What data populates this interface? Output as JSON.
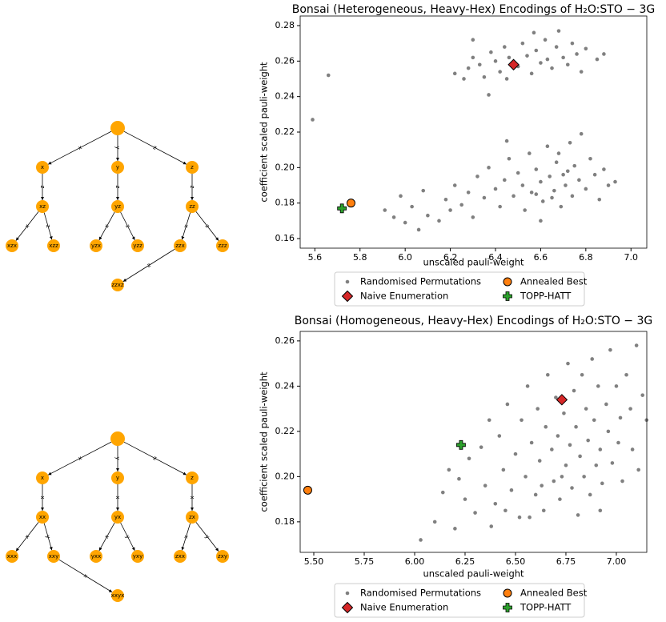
{
  "trees": [
    {
      "children": [
        {
          "edge": "x",
          "label": "x",
          "children": [
            {
              "edge": "z",
              "label": "xz",
              "children": [
                {
                  "edge": "x",
                  "label": "xzx"
                },
                {
                  "edge": "z",
                  "label": "xzz"
                }
              ]
            }
          ]
        },
        {
          "edge": "y",
          "label": "y",
          "children": [
            {
              "edge": "z",
              "label": "yz",
              "children": [
                {
                  "edge": "x",
                  "label": "yzx"
                },
                {
                  "edge": "z",
                  "label": "yzz"
                }
              ]
            }
          ]
        },
        {
          "edge": "z",
          "label": "z",
          "children": [
            {
              "edge": "z",
              "label": "zz",
              "children": [
                {
                  "edge": "x",
                  "label": "zzx",
                  "children": [
                    {
                      "edge": "z",
                      "label": "zzxz"
                    }
                  ]
                },
                {
                  "edge": "z",
                  "label": "zzz"
                }
              ]
            }
          ]
        }
      ]
    },
    {
      "children": [
        {
          "edge": "x",
          "label": "x",
          "children": [
            {
              "edge": "x",
              "label": "xx",
              "children": [
                {
                  "edge": "x",
                  "label": "xxx"
                },
                {
                  "edge": "y",
                  "label": "xxy",
                  "children": [
                    {
                      "edge": "x",
                      "label": "xxyx"
                    }
                  ]
                }
              ]
            }
          ]
        },
        {
          "edge": "y",
          "label": "y",
          "children": [
            {
              "edge": "x",
              "label": "yx",
              "children": [
                {
                  "edge": "x",
                  "label": "yxx"
                },
                {
                  "edge": "y",
                  "label": "yxy"
                }
              ]
            }
          ]
        },
        {
          "edge": "z",
          "label": "z",
          "children": [
            {
              "edge": "x",
              "label": "zx",
              "children": [
                {
                  "edge": "x",
                  "label": "zxx"
                },
                {
                  "edge": "y",
                  "label": "zxy"
                }
              ]
            }
          ]
        }
      ]
    }
  ],
  "chart_data": [
    {
      "type": "scatter",
      "title": "Bonsai (Heterogeneous, Heavy-Hex) Encodings of H₂O:STO − 3G",
      "xlabel": "unscaled pauli-weight",
      "ylabel": "coefficient scaled pauli-weight",
      "xlim": [
        5.535,
        7.07
      ],
      "ylim": [
        0.1546,
        0.2854
      ],
      "xticks": [
        5.6,
        5.8,
        {
          "value": 6,
          "label": "6.0"
        },
        6.2,
        6.4,
        6.6,
        6.8,
        {
          "value": 7,
          "label": "7.0"
        }
      ],
      "yticks": [
        0.16,
        0.18,
        {
          "value": 0.2,
          "label": "0.20"
        },
        0.22,
        0.24,
        0.26,
        0.28
      ],
      "legend": "bottom-outside",
      "series": [
        {
          "name": "Randomised Permutations",
          "color": "#808080",
          "marker": "point",
          "x": [
            6.22,
            6.26,
            6.28,
            6.3,
            6.33,
            6.35,
            6.37,
            6.38,
            6.4,
            6.42,
            6.44,
            6.46,
            6.5,
            6.52,
            6.54,
            6.56,
            6.58,
            6.6,
            6.62,
            6.63,
            6.65,
            6.67,
            6.68,
            6.7,
            6.72,
            6.74,
            6.76,
            6.78,
            6.8,
            6.85,
            6.88,
            6.57,
            6.45,
            6.3,
            5.59,
            5.66,
            5.91,
            5.95,
            5.98,
            6.0,
            6.03,
            6.06,
            6.08,
            6.1,
            6.15,
            6.18,
            6.2,
            6.22,
            6.25,
            6.28,
            6.3,
            6.32,
            6.35,
            6.37,
            6.4,
            6.42,
            6.44,
            6.46,
            6.48,
            6.5,
            6.52,
            6.53,
            6.55,
            6.56,
            6.58,
            6.6,
            6.61,
            6.63,
            6.64,
            6.66,
            6.67,
            6.69,
            6.7,
            6.71,
            6.73,
            6.74,
            6.75,
            6.77,
            6.78,
            6.8,
            6.82,
            6.84,
            6.86,
            6.88,
            6.9,
            6.93,
            6.6,
            6.45,
            6.68,
            6.72,
            6.58,
            6.65
          ],
          "values": [
            0.253,
            0.25,
            0.256,
            0.262,
            0.258,
            0.251,
            0.241,
            0.265,
            0.26,
            0.254,
            0.268,
            0.262,
            0.257,
            0.27,
            0.263,
            0.253,
            0.266,
            0.259,
            0.272,
            0.261,
            0.256,
            0.268,
            0.277,
            0.262,
            0.258,
            0.27,
            0.264,
            0.254,
            0.267,
            0.261,
            0.264,
            0.276,
            0.25,
            0.272,
            0.227,
            0.252,
            0.176,
            0.172,
            0.184,
            0.169,
            0.178,
            0.165,
            0.187,
            0.173,
            0.17,
            0.182,
            0.176,
            0.19,
            0.179,
            0.186,
            0.172,
            0.195,
            0.183,
            0.2,
            0.188,
            0.178,
            0.193,
            0.205,
            0.184,
            0.197,
            0.19,
            0.176,
            0.208,
            0.186,
            0.199,
            0.192,
            0.181,
            0.212,
            0.195,
            0.187,
            0.203,
            0.178,
            0.196,
            0.19,
            0.214,
            0.184,
            0.201,
            0.193,
            0.219,
            0.188,
            0.205,
            0.196,
            0.182,
            0.199,
            0.19,
            0.192,
            0.17,
            0.215,
            0.208,
            0.198,
            0.185,
            0.183
          ]
        },
        {
          "name": "Naive Enumeration",
          "color": "#d62728",
          "marker": "diamond",
          "x": [
            6.48
          ],
          "values": [
            0.258
          ]
        },
        {
          "name": "Annealed Best",
          "color": "#ff7f0e",
          "marker": "circle",
          "x": [
            5.76
          ],
          "values": [
            0.18
          ]
        },
        {
          "name": "TOPP-HATT",
          "color": "#2ca02c",
          "marker": "plus",
          "x": [
            5.72
          ],
          "values": [
            0.177
          ]
        }
      ]
    },
    {
      "type": "scatter",
      "title": "Bonsai (Homogeneous, Heavy-Hex) Encodings of H₂O:STO − 3G",
      "xlabel": "unscaled pauli-weight",
      "ylabel": "coefficient scaled pauli-weight",
      "xlim": [
        5.4325,
        7.151
      ],
      "ylim": [
        0.1665,
        0.2642
      ],
      "xticks": [
        {
          "value": 5.5,
          "label": "5.50"
        },
        5.75,
        {
          "value": 6,
          "label": "6.00"
        },
        6.25,
        {
          "value": 6.5,
          "label": "6.50"
        },
        6.75,
        {
          "value": 7,
          "label": "7.00"
        }
      ],
      "yticks": [
        0.18,
        {
          "value": 0.2,
          "label": "0.20"
        },
        0.22,
        0.24,
        0.26
      ],
      "legend": "bottom-outside",
      "series": [
        {
          "name": "Randomised Permutations",
          "color": "#808080",
          "marker": "point",
          "x": [
            6.03,
            6.1,
            6.14,
            6.17,
            6.2,
            6.22,
            6.25,
            6.27,
            6.3,
            6.33,
            6.35,
            6.37,
            6.4,
            6.42,
            6.44,
            6.46,
            6.48,
            6.5,
            6.52,
            6.53,
            6.55,
            6.56,
            6.58,
            6.6,
            6.61,
            6.62,
            6.64,
            6.65,
            6.66,
            6.68,
            6.69,
            6.7,
            6.71,
            6.72,
            6.74,
            6.75,
            6.76,
            6.77,
            6.78,
            6.79,
            6.8,
            6.81,
            6.82,
            6.83,
            6.84,
            6.85,
            6.86,
            6.87,
            6.88,
            6.89,
            6.9,
            6.91,
            6.92,
            6.93,
            6.95,
            6.96,
            6.97,
            6.98,
            7.0,
            7.01,
            7.02,
            7.03,
            7.05,
            7.07,
            7.08,
            7.1,
            7.11,
            7.13,
            7.15,
            6.57,
            6.63,
            6.73,
            6.92,
            6.45,
            6.38
          ],
          "values": [
            0.172,
            0.18,
            0.193,
            0.203,
            0.177,
            0.199,
            0.19,
            0.208,
            0.184,
            0.213,
            0.196,
            0.225,
            0.188,
            0.218,
            0.203,
            0.232,
            0.194,
            0.21,
            0.182,
            0.225,
            0.2,
            0.24,
            0.215,
            0.192,
            0.23,
            0.207,
            0.185,
            0.222,
            0.245,
            0.212,
            0.198,
            0.235,
            0.218,
            0.19,
            0.228,
            0.205,
            0.25,
            0.214,
            0.195,
            0.238,
            0.222,
            0.183,
            0.209,
            0.245,
            0.2,
            0.23,
            0.216,
            0.192,
            0.252,
            0.225,
            0.205,
            0.24,
            0.212,
            0.197,
            0.232,
            0.22,
            0.256,
            0.206,
            0.24,
            0.215,
            0.226,
            0.198,
            0.245,
            0.23,
            0.212,
            0.258,
            0.203,
            0.236,
            0.225,
            0.182,
            0.196,
            0.2,
            0.185,
            0.185,
            0.178
          ]
        },
        {
          "name": "Naive Enumeration",
          "color": "#d62728",
          "marker": "diamond",
          "x": [
            6.73
          ],
          "values": [
            0.234
          ]
        },
        {
          "name": "Annealed Best",
          "color": "#ff7f0e",
          "marker": "circle",
          "x": [
            5.47
          ],
          "values": [
            0.194
          ]
        },
        {
          "name": "TOPP-HATT",
          "color": "#2ca02c",
          "marker": "plus",
          "x": [
            6.23
          ],
          "values": [
            0.214
          ]
        }
      ]
    }
  ]
}
